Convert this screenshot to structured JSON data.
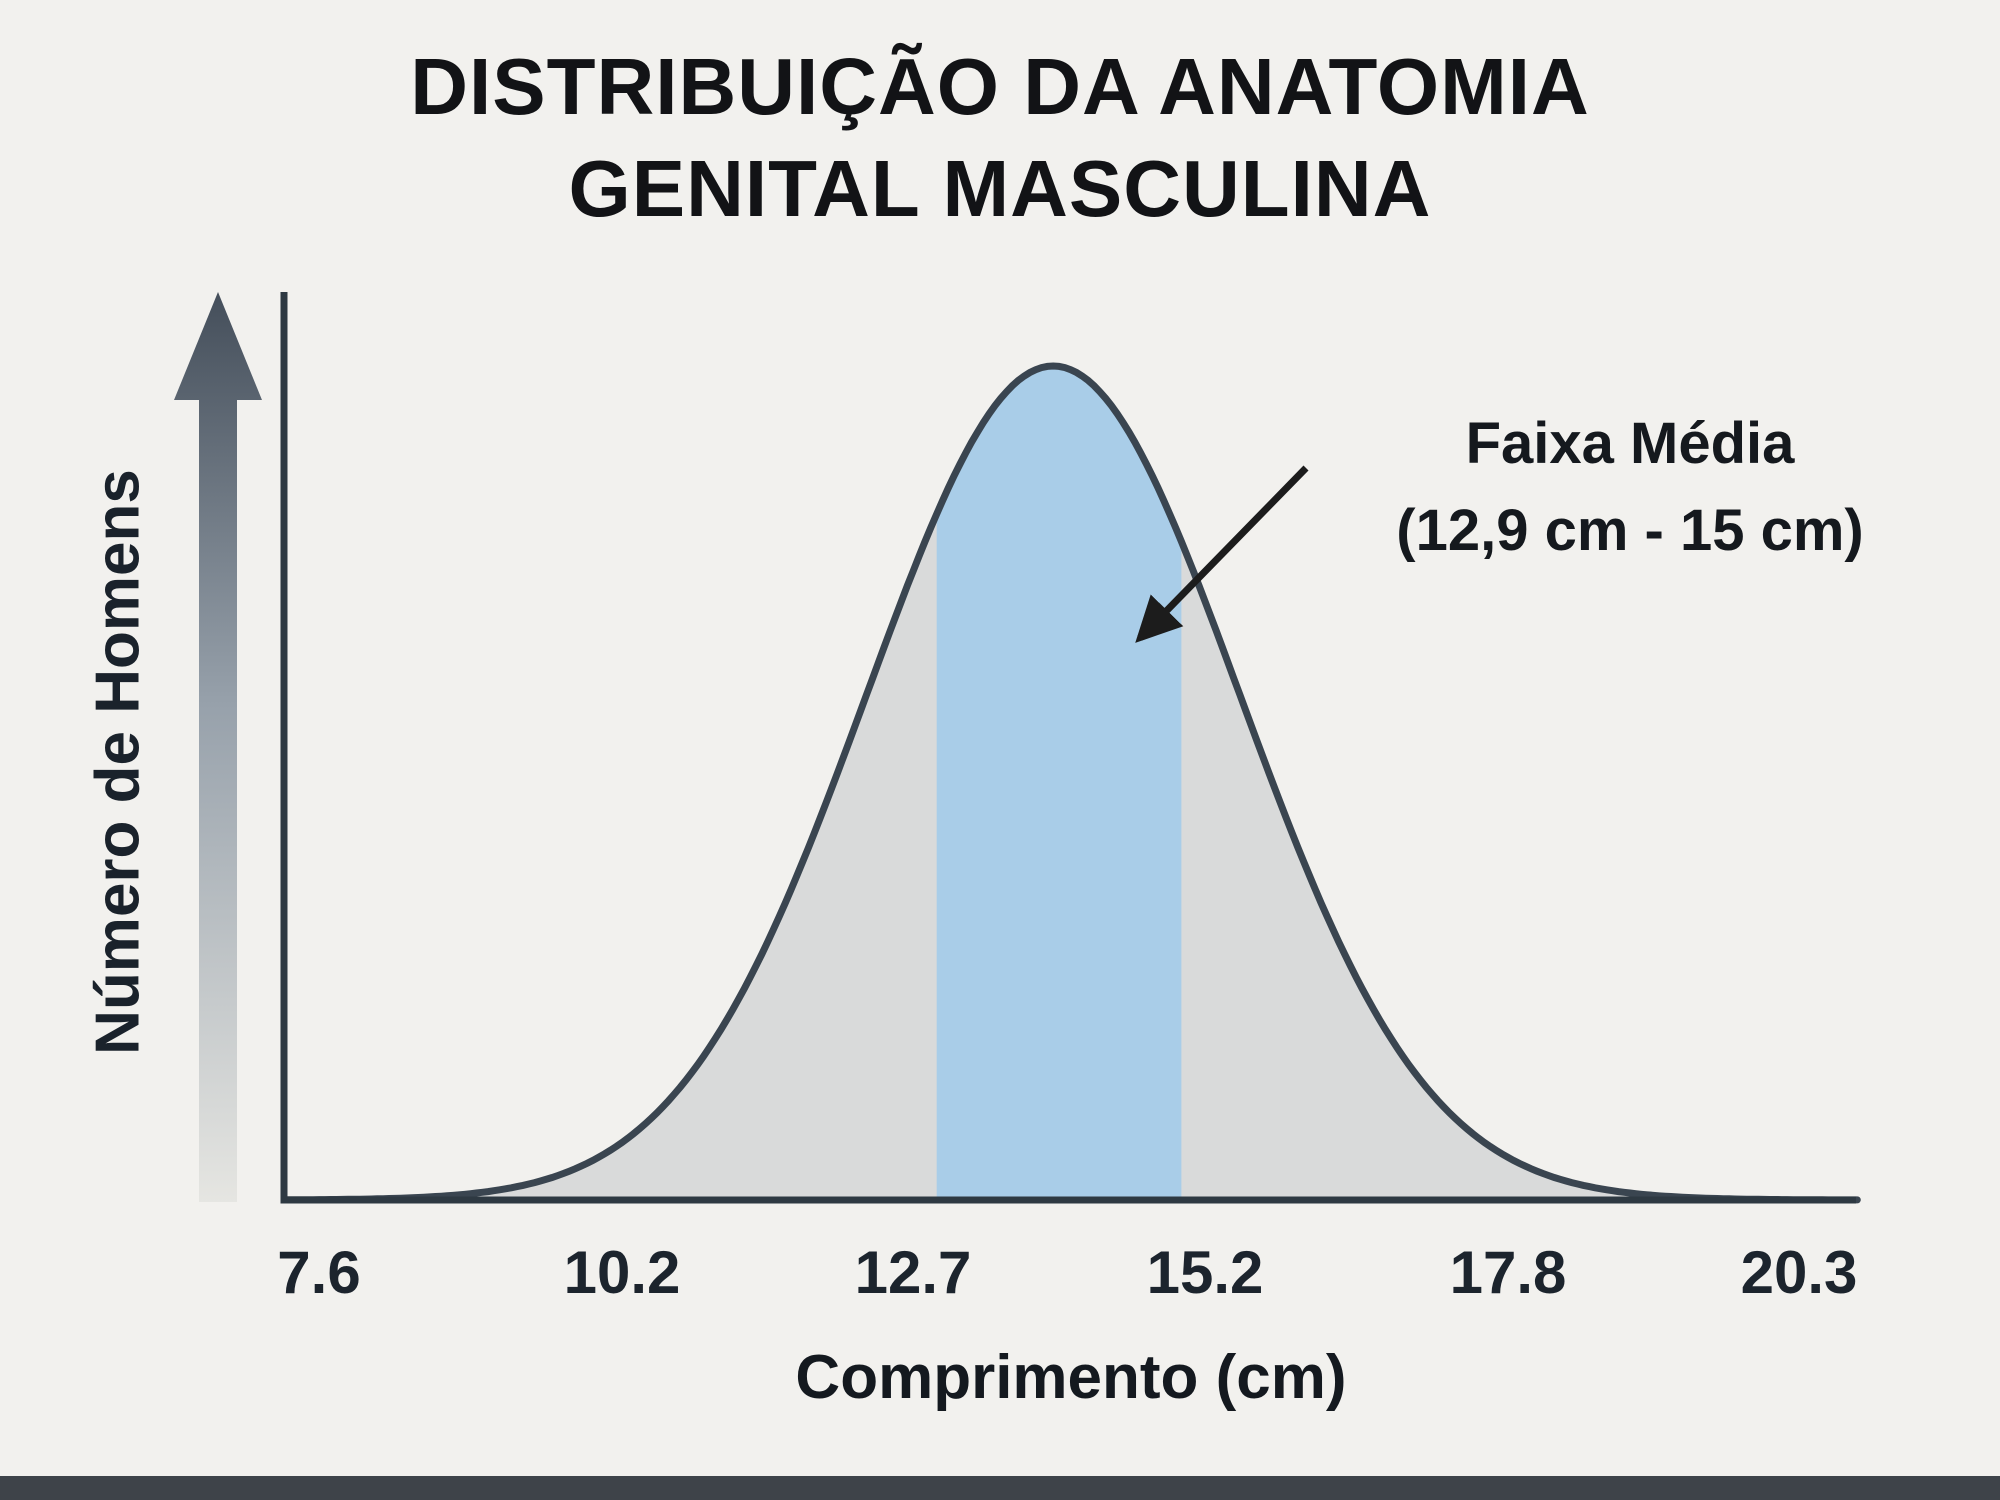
{
  "chart_data": {
    "type": "area",
    "title": "DISTRIBUIÇÃO DA ANATOMIA GENITAL MASCULINA",
    "title_lines": [
      "DISTRIBUIÇÃO DA ANATOMIA",
      "GENITAL MASCULINA"
    ],
    "xlabel": "Comprimento (cm)",
    "ylabel": "Número de Homens",
    "x_ticks": [
      7.6,
      10.2,
      12.7,
      15.2,
      17.8,
      20.3
    ],
    "x_tick_labels": [
      "7.6",
      "10.2",
      "12.7",
      "15.2",
      "17.8",
      "20.3"
    ],
    "xlim": [
      7.3,
      20.8
    ],
    "y_axis_numeric": false,
    "grid": false,
    "legend": false,
    "distribution": {
      "shape": "gaussian",
      "mean": 13.9,
      "sd": 1.6,
      "peak_normalized": 1.0
    },
    "highlight_band": {
      "from": 12.9,
      "to": 15.0,
      "label": "Faixa Média",
      "range_label": "(12,9 cm - 15 cm)"
    },
    "colors": {
      "background": "#f2f1ee",
      "curve_stroke": "#3a4550",
      "area_fill": "#d9dada",
      "highlight_fill": "#a6cce9",
      "axis": "#2e3942",
      "text": "#15191e",
      "annotation_arrow": "#1c1c1c",
      "y_arrow_top": "#454f5b",
      "y_arrow_mid": "#97a1ab",
      "y_arrow_bottom": "#e6e6e2",
      "bottom_bar": "#3e4349"
    }
  }
}
